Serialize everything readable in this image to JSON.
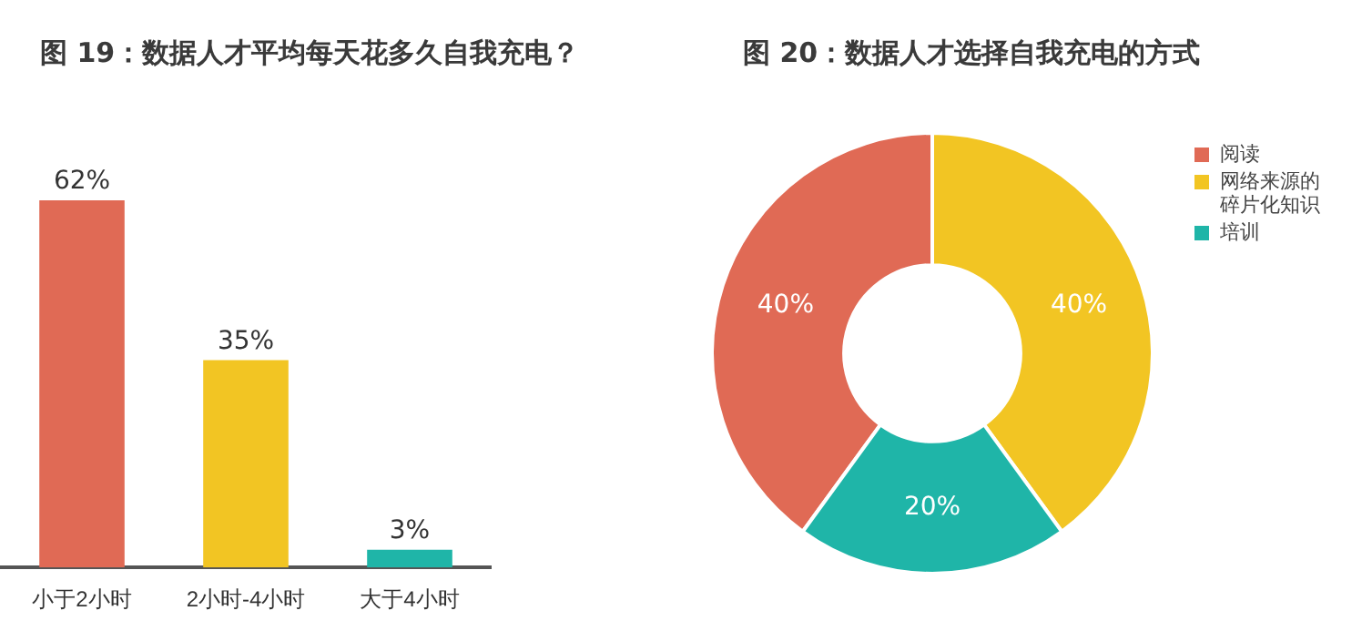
{
  "chart_data": [
    {
      "type": "bar",
      "title": "图 19：数据人才平均每天花多久自我充电？",
      "categories": [
        "小于2小时",
        "2小时-4小时",
        "大于4小时"
      ],
      "values": [
        62,
        35,
        3
      ],
      "colors": [
        "#e06a55",
        "#f2c523",
        "#1fb5a8"
      ],
      "value_labels": [
        "62%",
        "35%",
        "3%"
      ],
      "tick_labels": "x",
      "legend": false
    },
    {
      "type": "donut",
      "title": "图 20：数据人才选择自我充电的方式",
      "categories": [
        "阅读",
        "网络来源的碎片化知识",
        "培训"
      ],
      "values": [
        40,
        40,
        20
      ],
      "colors": [
        "#e06a55",
        "#f2c523",
        "#1fb5a8"
      ],
      "value_labels": [
        "40%",
        "40%",
        "20%"
      ],
      "legend": "top right"
    }
  ]
}
